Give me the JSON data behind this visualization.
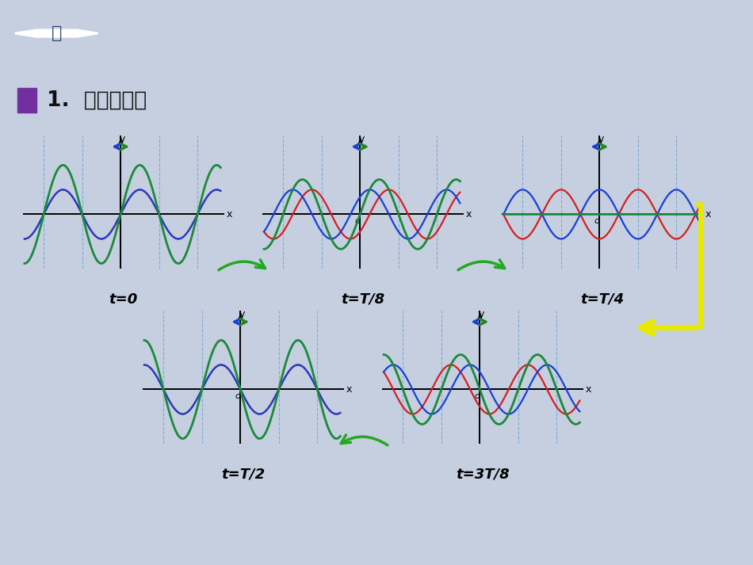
{
  "bg_color": "#c5cfe0",
  "header_color": "#2d3f6b",
  "title_text": "1.  馻波的形成",
  "title_color": "#111111",
  "purple_rect": "#7030a0",
  "wave_red": "#d42020",
  "wave_blue": "#1a3fd4",
  "wave_green": "#1a8a3a",
  "dashed_color": "#5599cc",
  "arrow_left_color": "#1a3fd4",
  "arrow_right_color": "#228822",
  "green_arrow_color": "#22aa22",
  "yellow_color": "#e8e800",
  "time_labels": [
    "t=0",
    "t=T/8",
    "t=T/4",
    "t=T/2",
    "t=3T/8"
  ],
  "time_values": [
    0.0,
    0.125,
    0.25,
    0.5,
    0.375
  ],
  "panel_bg": "#f0f4fc",
  "panel_border": "#cccccc"
}
